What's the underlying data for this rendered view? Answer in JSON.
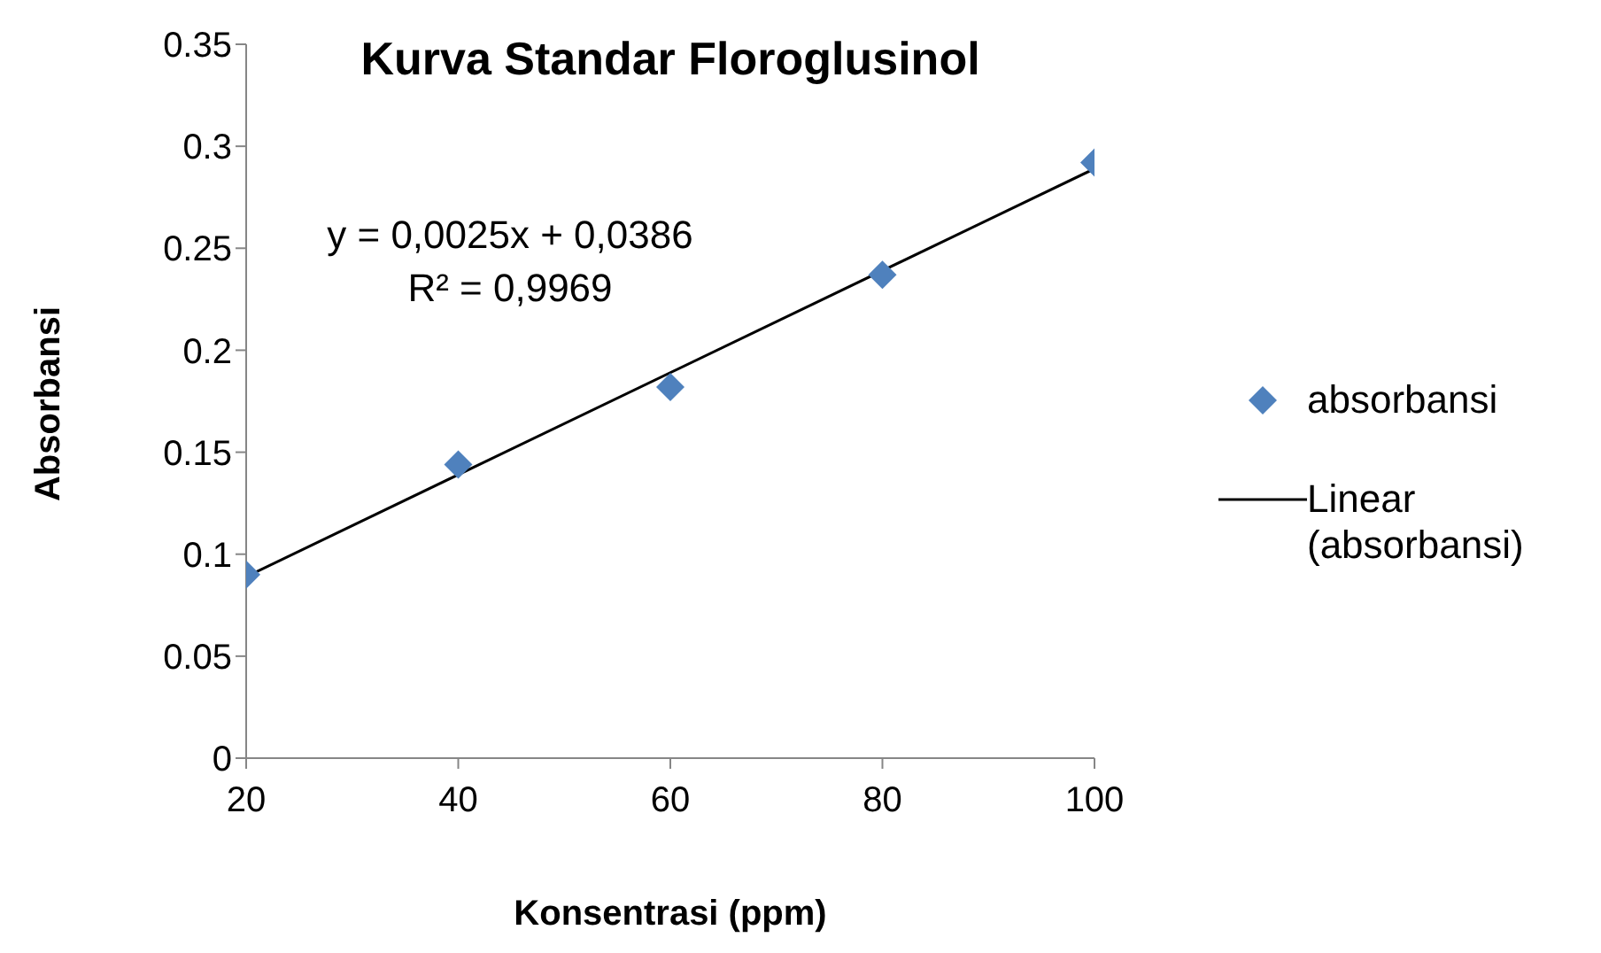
{
  "chart_data": {
    "type": "scatter",
    "title": "Kurva Standar Floroglusinol",
    "xlabel": "Konsentrasi (ppm)",
    "ylabel": "Absorbansi",
    "annotations": [
      "y = 0,0025x + 0,0386",
      "R² = 0,9969"
    ],
    "series": [
      {
        "name": "absorbansi",
        "color": "#4f81bd",
        "marker": "diamond",
        "x": [
          20,
          40,
          60,
          80,
          100
        ],
        "values": [
          0.09,
          0.144,
          0.182,
          0.237,
          0.292
        ]
      },
      {
        "name": "Linear (absorbansi)",
        "type": "line",
        "marker": "none",
        "color": "#000000",
        "x": [
          20,
          100
        ],
        "values": [
          0.089,
          0.289
        ]
      }
    ],
    "xlim": [
      20,
      100
    ],
    "xticks": [
      20,
      40,
      60,
      80,
      100
    ],
    "ylim": [
      0,
      0.35
    ],
    "yticks": [
      0,
      0.05,
      0.1,
      0.15,
      0.2,
      0.25,
      0.3,
      0.35
    ],
    "grid": false,
    "legend": "right",
    "line_style": "solid"
  }
}
